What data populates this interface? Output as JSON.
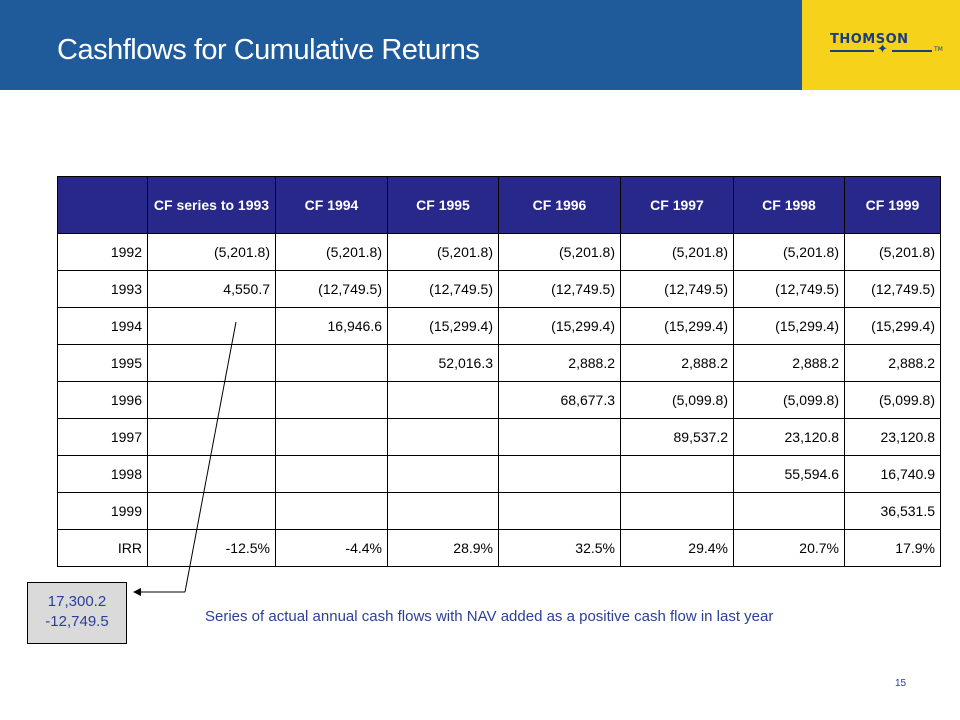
{
  "slide": {
    "title": "Cashflows for Cumulative Returns",
    "page_number": "15",
    "caption": "Series of actual annual cash flows with NAV added as a positive cash flow in last year"
  },
  "logo": {
    "text": "THOMSON",
    "tm": "TM"
  },
  "table": {
    "headers": [
      "",
      "CF series to 1993",
      "CF 1994",
      "CF 1995",
      "CF 1996",
      "CF 1997",
      "CF 1998",
      "CF 1999"
    ],
    "rows": [
      [
        "1992",
        "(5,201.8)",
        "(5,201.8)",
        "(5,201.8)",
        "(5,201.8)",
        "(5,201.8)",
        "(5,201.8)",
        "(5,201.8)"
      ],
      [
        "1993",
        "4,550.7",
        "(12,749.5)",
        "(12,749.5)",
        "(12,749.5)",
        "(12,749.5)",
        "(12,749.5)",
        "(12,749.5)"
      ],
      [
        "1994",
        "",
        "16,946.6",
        "(15,299.4)",
        "(15,299.4)",
        "(15,299.4)",
        "(15,299.4)",
        "(15,299.4)"
      ],
      [
        "1995",
        "",
        "",
        "52,016.3",
        "2,888.2",
        "2,888.2",
        "2,888.2",
        "2,888.2"
      ],
      [
        "1996",
        "",
        "",
        "",
        "68,677.3",
        "(5,099.8)",
        "(5,099.8)",
        "(5,099.8)"
      ],
      [
        "1997",
        "",
        "",
        "",
        "",
        "89,537.2",
        "23,120.8",
        "23,120.8"
      ],
      [
        "1998",
        "",
        "",
        "",
        "",
        "",
        "55,594.6",
        "16,740.9"
      ],
      [
        "1999",
        "",
        "",
        "",
        "",
        "",
        "",
        "36,531.5"
      ],
      [
        "IRR",
        "-12.5%",
        "-4.4%",
        "28.9%",
        "32.5%",
        "29.4%",
        "20.7%",
        "17.9%"
      ]
    ]
  },
  "callout": {
    "line1": "17,300.2",
    "line2": "-12,749.5"
  },
  "colors": {
    "header_blue": "#1f5a9a",
    "logo_yellow": "#f7d21a",
    "table_header": "#28288a",
    "text_blue": "#2b3f97",
    "callout_bg": "#dadada"
  }
}
